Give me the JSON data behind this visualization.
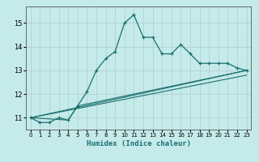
{
  "xlabel": "Humidex (Indice chaleur)",
  "background_color": "#c5eaea",
  "grid_color": "#b0cccc",
  "line_color": "#1a7070",
  "xlim": [
    -0.5,
    23.5
  ],
  "ylim": [
    10.5,
    15.7
  ],
  "yticks": [
    11,
    12,
    13,
    14,
    15
  ],
  "xticks": [
    0,
    1,
    2,
    3,
    4,
    5,
    6,
    7,
    8,
    9,
    10,
    11,
    12,
    13,
    14,
    15,
    16,
    17,
    18,
    19,
    20,
    21,
    22,
    23
  ],
  "series1_x": [
    0,
    1,
    2,
    3,
    4,
    5,
    6,
    7,
    8,
    9,
    10,
    11,
    12,
    13,
    14,
    15,
    16,
    17,
    18,
    19,
    20,
    21,
    22,
    23
  ],
  "series1_y": [
    11.0,
    10.8,
    10.8,
    11.0,
    10.9,
    11.5,
    12.1,
    13.0,
    13.5,
    13.8,
    15.0,
    15.35,
    14.4,
    14.4,
    13.7,
    13.7,
    14.1,
    13.7,
    13.3,
    13.3,
    13.3,
    13.3,
    13.1,
    13.0
  ],
  "series2_x": [
    0,
    4,
    5,
    23
  ],
  "series2_y": [
    11.0,
    10.9,
    11.5,
    13.0
  ],
  "series3_x": [
    0,
    23
  ],
  "series3_y": [
    11.0,
    13.0
  ],
  "series4_x": [
    0,
    23
  ],
  "series4_y": [
    11.0,
    12.8
  ]
}
